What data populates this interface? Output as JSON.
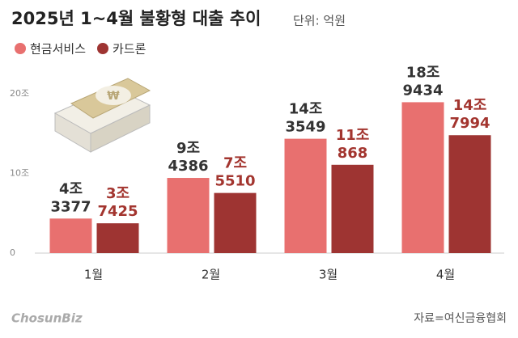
{
  "chart_data": {
    "type": "bar",
    "title": "2025년 1~4월 불황형 대출 추이",
    "subtitle": "단위: 억원",
    "categories": [
      "1월",
      "2월",
      "3월",
      "4월"
    ],
    "series": [
      {
        "name": "현금서비스",
        "color": "#e8706f",
        "label_color": "#333333",
        "values": [
          43377,
          94386,
          143549,
          189434
        ],
        "value_labels": [
          [
            "4조",
            "3377"
          ],
          [
            "9조",
            "4386"
          ],
          [
            "14조",
            "3549"
          ],
          [
            "18조",
            "9434"
          ]
        ]
      },
      {
        "name": "카드론",
        "color": "#9e3432",
        "label_color": "#a3352f",
        "values": [
          37425,
          75510,
          110868,
          147994
        ],
        "value_labels": [
          [
            "3조",
            "7425"
          ],
          [
            "7조",
            "5510"
          ],
          [
            "11조",
            "868"
          ],
          [
            "14조",
            "7994"
          ]
        ]
      }
    ],
    "ylim": [
      0,
      200000
    ],
    "yticks": [
      0,
      {
        "value": 100000,
        "label": "10조"
      },
      {
        "value": 200000,
        "label": "20조"
      }
    ],
    "grid": false,
    "source": "자료=여신금융협회",
    "logo": "ChosunBiz"
  }
}
